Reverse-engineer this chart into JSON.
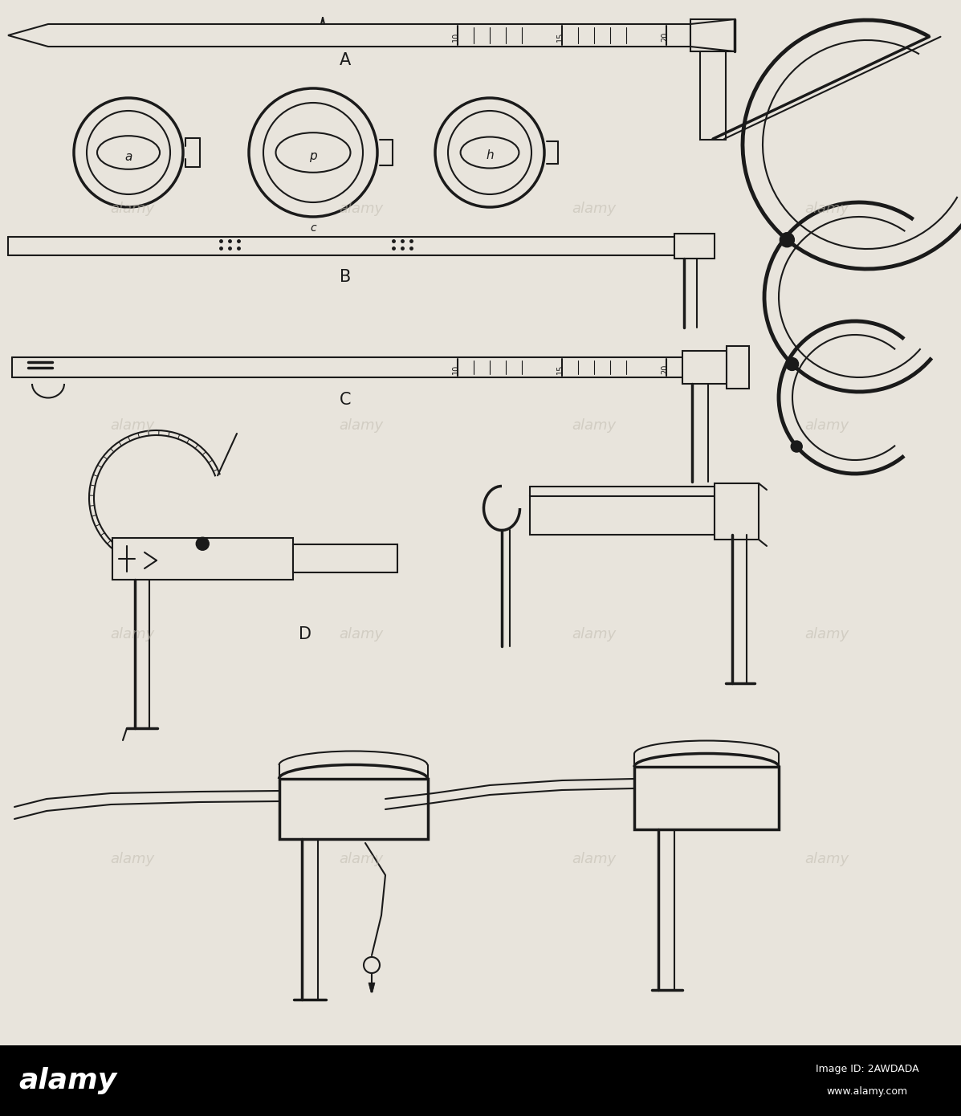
{
  "bg_color": "#e8e4dc",
  "line_color": "#1a1a1a",
  "lw": 1.5,
  "lw_thick": 2.5,
  "lw_bold": 3.5,
  "fig_width": 11.97,
  "fig_height": 13.9,
  "label_A": "A",
  "label_B": "B",
  "label_C": "C",
  "label_D": "D",
  "label_a": "a",
  "label_c": "c",
  "label_p": "p",
  "label_h": "h",
  "watermark": "alamy",
  "watermark_color": "#c0bbaf",
  "footer_bg": "#000000",
  "image_id": "2AWDADA"
}
